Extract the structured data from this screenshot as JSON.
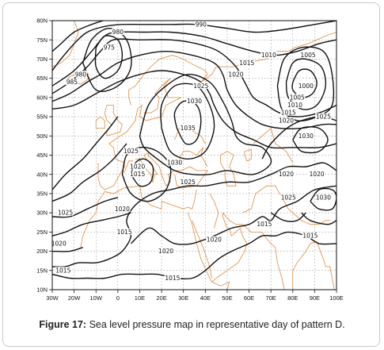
{
  "figure": {
    "label": "Figure 17:",
    "text": " Sea level pressure map in representative day of pattern D."
  },
  "colors": {
    "coastline": "#e08a3c",
    "contour": "#111111",
    "grid": "#9a9a9a",
    "frame_bg": "#ffffff"
  },
  "map": {
    "lon_range": [
      -30,
      100
    ],
    "lat_range": [
      10,
      80
    ],
    "x_ticks": [
      {
        "value": -30,
        "label": "30W"
      },
      {
        "value": -20,
        "label": "20W"
      },
      {
        "value": -10,
        "label": "10W"
      },
      {
        "value": 0,
        "label": "0"
      },
      {
        "value": 10,
        "label": "10E"
      },
      {
        "value": 20,
        "label": "20E"
      },
      {
        "value": 30,
        "label": "30E"
      },
      {
        "value": 40,
        "label": "40E"
      },
      {
        "value": 50,
        "label": "50E"
      },
      {
        "value": 60,
        "label": "60E"
      },
      {
        "value": 70,
        "label": "70E"
      },
      {
        "value": 80,
        "label": "80E"
      },
      {
        "value": 90,
        "label": "90E"
      },
      {
        "value": 100,
        "label": "100E"
      }
    ],
    "y_ticks": [
      {
        "value": 80,
        "label": "80N"
      },
      {
        "value": 75,
        "label": "75N"
      },
      {
        "value": 70,
        "label": "70N"
      },
      {
        "value": 65,
        "label": "65N"
      },
      {
        "value": 60,
        "label": "60N"
      },
      {
        "value": 55,
        "label": "55N"
      },
      {
        "value": 50,
        "label": "50N"
      },
      {
        "value": 45,
        "label": "45N"
      },
      {
        "value": 40,
        "label": "40N"
      },
      {
        "value": 35,
        "label": "35N"
      },
      {
        "value": 30,
        "label": "30N"
      },
      {
        "value": 25,
        "label": "25N"
      },
      {
        "value": 20,
        "label": "20N"
      },
      {
        "value": 15,
        "label": "15N"
      },
      {
        "value": 10,
        "label": "10N"
      }
    ],
    "contour_labels": [
      {
        "lon": 0,
        "lat": 77,
        "text": "980"
      },
      {
        "lon": -4,
        "lat": 73,
        "text": "975"
      },
      {
        "lon": -17,
        "lat": 66,
        "text": "980"
      },
      {
        "lon": -21,
        "lat": 64,
        "text": "985"
      },
      {
        "lon": 38,
        "lat": 79,
        "text": "990"
      },
      {
        "lon": 69,
        "lat": 71,
        "text": "1010"
      },
      {
        "lon": 59,
        "lat": 69,
        "text": "1015"
      },
      {
        "lon": 54,
        "lat": 66,
        "text": "1020"
      },
      {
        "lon": 38,
        "lat": 63,
        "text": "1025"
      },
      {
        "lon": 35,
        "lat": 59,
        "text": "1030"
      },
      {
        "lon": 32,
        "lat": 52,
        "text": "1035"
      },
      {
        "lon": 87,
        "lat": 71,
        "text": "1005"
      },
      {
        "lon": 86,
        "lat": 63,
        "text": "1000"
      },
      {
        "lon": 82,
        "lat": 60,
        "text": "1005"
      },
      {
        "lon": 81,
        "lat": 58,
        "text": "1010"
      },
      {
        "lon": 78,
        "lat": 56,
        "text": "1015"
      },
      {
        "lon": 77,
        "lat": 54,
        "text": "1020"
      },
      {
        "lon": 94,
        "lat": 55,
        "text": "1025"
      },
      {
        "lon": 86,
        "lat": 50,
        "text": "1030"
      },
      {
        "lon": 6,
        "lat": 46,
        "text": "1025"
      },
      {
        "lon": 9,
        "lat": 42,
        "text": "1020"
      },
      {
        "lon": 9,
        "lat": 40,
        "text": "1015"
      },
      {
        "lon": 26,
        "lat": 43,
        "text": "1030"
      },
      {
        "lon": 32,
        "lat": 38,
        "text": "1025"
      },
      {
        "lon": 77,
        "lat": 40,
        "text": "1020"
      },
      {
        "lon": 91,
        "lat": 40,
        "text": "1020"
      },
      {
        "lon": 78,
        "lat": 34,
        "text": "1025"
      },
      {
        "lon": 94,
        "lat": 34,
        "text": "1030"
      },
      {
        "lon": -24,
        "lat": 30,
        "text": "1025"
      },
      {
        "lon": 2,
        "lat": 31,
        "text": "1020"
      },
      {
        "lon": -27,
        "lat": 22,
        "text": "1020"
      },
      {
        "lon": 3,
        "lat": 25,
        "text": "1015"
      },
      {
        "lon": 44,
        "lat": 23,
        "text": "1020"
      },
      {
        "lon": 22,
        "lat": 20,
        "text": "1020"
      },
      {
        "lon": 67,
        "lat": 27,
        "text": "1015"
      },
      {
        "lon": 88,
        "lat": 24,
        "text": "1015"
      },
      {
        "lon": -25,
        "lat": 15,
        "text": "1015"
      },
      {
        "lon": 25,
        "lat": 13,
        "text": "1015"
      }
    ]
  }
}
